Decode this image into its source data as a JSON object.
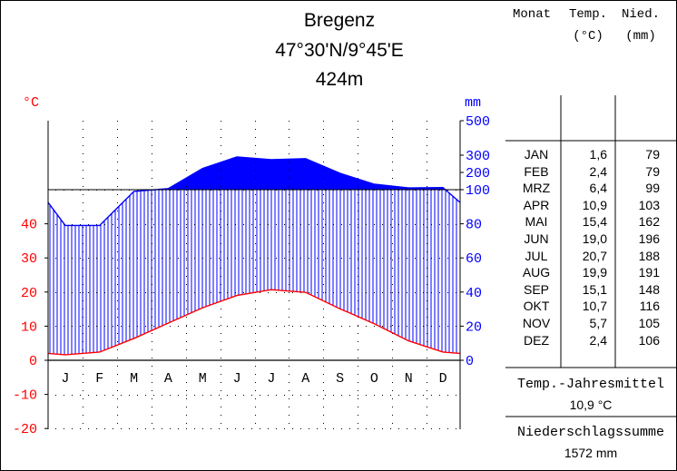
{
  "header": {
    "station": "Bregenz",
    "coordinates": "47°30'N/9°45'E",
    "elevation": "424m"
  },
  "chart_data": {
    "type": "bar",
    "categories": [
      "J",
      "F",
      "M",
      "A",
      "M",
      "J",
      "J",
      "A",
      "S",
      "O",
      "N",
      "D"
    ],
    "series": [
      {
        "name": "Temp.",
        "unit": "°C",
        "values": [
          1.6,
          2.4,
          6.4,
          10.9,
          15.4,
          19.0,
          20.7,
          19.9,
          15.1,
          10.7,
          5.7,
          2.4
        ]
      },
      {
        "name": "Nied.",
        "unit": "mm",
        "values": [
          79,
          79,
          99,
          103,
          162,
          196,
          188,
          191,
          148,
          116,
          105,
          106
        ]
      }
    ],
    "left_axis": {
      "unit": "°C",
      "ticks": [
        "40",
        "30",
        "20",
        "10",
        "0",
        "-10",
        "-20"
      ],
      "range": [
        -20,
        50
      ]
    },
    "right_axis": {
      "unit": "mm",
      "ticks": [
        "500",
        "300",
        "200",
        "100",
        "80",
        "60",
        "40",
        "20",
        "0"
      ],
      "range": [
        0,
        500
      ]
    },
    "colors": {
      "temperature": "#ff0000",
      "precipitation": "#0000ff",
      "grid": "#000000"
    }
  },
  "table": {
    "headers": {
      "month": "Monat",
      "temp_line1": "Temp.",
      "temp_line2": "(°C)",
      "precip_line1": "Nied.",
      "precip_line2": "(mm)"
    },
    "rows": [
      {
        "month": "JAN",
        "temp": "1,6",
        "precip": "79"
      },
      {
        "month": "FEB",
        "temp": "2,4",
        "precip": "79"
      },
      {
        "month": "MRZ",
        "temp": "6,4",
        "precip": "99"
      },
      {
        "month": "APR",
        "temp": "10,9",
        "precip": "103"
      },
      {
        "month": "MAI",
        "temp": "15,4",
        "precip": "162"
      },
      {
        "month": "JUN",
        "temp": "19,0",
        "precip": "196"
      },
      {
        "month": "JUL",
        "temp": "20,7",
        "precip": "188"
      },
      {
        "month": "AUG",
        "temp": "19,9",
        "precip": "191"
      },
      {
        "month": "SEP",
        "temp": "15,1",
        "precip": "148"
      },
      {
        "month": "OKT",
        "temp": "10,7",
        "precip": "116"
      },
      {
        "month": "NOV",
        "temp": "5,7",
        "precip": "105"
      },
      {
        "month": "DEZ",
        "temp": "2,4",
        "precip": "106"
      }
    ]
  },
  "summary": {
    "temp_label": "Temp.-Jahresmittel",
    "temp_value": "10,9 °C",
    "precip_label": "Niederschlagssumme",
    "precip_value": "1572 mm"
  }
}
